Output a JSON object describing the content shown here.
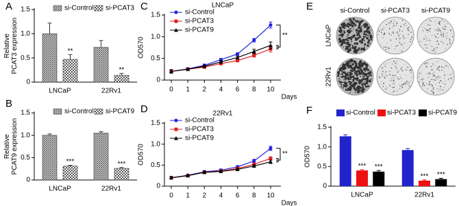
{
  "chart_data": [
    {
      "type": "bar",
      "panel": "A",
      "ylabel": [
        "Relative",
        "PCAT3 expression"
      ],
      "categories": [
        "LNCaP",
        "22Rv1"
      ],
      "series": [
        {
          "name": "si-Control",
          "color": "#666666",
          "pattern": "hatch",
          "values": [
            1.0,
            0.72
          ],
          "errors": [
            0.22,
            0.14
          ],
          "annotations": [
            null,
            null
          ]
        },
        {
          "name": "si-PCAT3",
          "color": "#555555",
          "pattern": "checker",
          "values": [
            0.47,
            0.14
          ],
          "errors": [
            0.1,
            0.04
          ],
          "annotations": [
            "**",
            "**"
          ]
        }
      ],
      "ylim": [
        0,
        1.5
      ],
      "yticks": [
        0,
        0.5,
        {
          "value": 1,
          "label": "1.0"
        },
        1.5
      ],
      "legend": "top"
    },
    {
      "type": "bar",
      "panel": "B",
      "ylabel": [
        "Relative",
        "PCAT9 expression"
      ],
      "categories": [
        "LNCaP",
        "22Rv1"
      ],
      "series": [
        {
          "name": "si-Control",
          "color": "#666666",
          "pattern": "hatch",
          "values": [
            1.0,
            1.05
          ],
          "errors": [
            0.03,
            0.03
          ],
          "annotations": [
            null,
            null
          ]
        },
        {
          "name": "si-PCAT9",
          "color": "#555555",
          "pattern": "checker",
          "values": [
            0.31,
            0.26
          ],
          "errors": [
            0.02,
            0.02
          ],
          "annotations": [
            "***",
            "***"
          ]
        }
      ],
      "ylim": [
        0,
        1.5
      ],
      "yticks": [
        0,
        0.5,
        {
          "value": 1,
          "label": "1.0"
        },
        1.5
      ],
      "legend": "top"
    },
    {
      "type": "line",
      "panel": "C",
      "title": "LNCaP",
      "ylabel": [
        "OD570"
      ],
      "xlabel": "Days",
      "categories": [
        "0",
        "1",
        "2",
        "4",
        "6",
        "8",
        "10"
      ],
      "series": [
        {
          "name": "si-Control",
          "color": "#1f1fe0",
          "marker": "circle",
          "values": [
            0.2,
            0.26,
            0.34,
            0.47,
            0.6,
            0.92,
            1.27
          ],
          "errors": [
            0.04,
            0.02,
            0.03,
            0.03,
            0.03,
            0.04,
            0.07
          ]
        },
        {
          "name": "si-PCAT3",
          "color": "#e01f1f",
          "marker": "square",
          "values": [
            0.2,
            0.25,
            0.3,
            0.38,
            0.45,
            0.57,
            0.72
          ],
          "errors": [
            0.04,
            0.02,
            0.02,
            0.03,
            0.03,
            0.04,
            0.07
          ]
        },
        {
          "name": "si-PCAT9",
          "color": "#000000",
          "marker": "triangle",
          "values": [
            0.2,
            0.25,
            0.32,
            0.42,
            0.52,
            0.66,
            0.8
          ],
          "errors": [
            0.04,
            0.02,
            0.02,
            0.03,
            0.03,
            0.05,
            0.08
          ]
        }
      ],
      "annotation": "**",
      "ylim": [
        0,
        1.5
      ],
      "yticks": [
        0,
        0.5,
        {
          "value": 1,
          "label": "1.0"
        },
        1.5
      ],
      "legend": "upper left"
    },
    {
      "type": "line",
      "panel": "D",
      "title": "22Rv1",
      "ylabel": [
        "OD570"
      ],
      "xlabel": "Days",
      "categories": [
        "0",
        "1",
        "2",
        "4",
        "6",
        "8",
        "10"
      ],
      "series": [
        {
          "name": "si-Control",
          "color": "#1f1fe0",
          "marker": "circle",
          "values": [
            0.2,
            0.26,
            0.34,
            0.38,
            0.46,
            0.6,
            0.9
          ],
          "errors": [
            0.03,
            0.02,
            0.03,
            0.03,
            0.03,
            0.04,
            0.05
          ]
        },
        {
          "name": "si-PCAT3",
          "color": "#e01f1f",
          "marker": "square",
          "values": [
            0.2,
            0.25,
            0.33,
            0.36,
            0.42,
            0.52,
            0.66
          ],
          "errors": [
            0.03,
            0.02,
            0.03,
            0.03,
            0.03,
            0.03,
            0.04
          ]
        },
        {
          "name": "si-PCAT9",
          "color": "#000000",
          "marker": "triangle",
          "values": [
            0.2,
            0.25,
            0.33,
            0.35,
            0.4,
            0.48,
            0.58
          ],
          "errors": [
            0.03,
            0.02,
            0.03,
            0.03,
            0.03,
            0.03,
            0.04
          ]
        }
      ],
      "annotation": "**",
      "ylim": [
        0,
        1.5
      ],
      "yticks": [
        0,
        0.5,
        {
          "value": 1,
          "label": "1.0"
        },
        1.5
      ],
      "legend": "upper left"
    },
    {
      "type": "bar",
      "panel": "F",
      "ylabel": [
        "OD570"
      ],
      "categories": [
        "LNCaP",
        "22Rv1"
      ],
      "series": [
        {
          "name": "si-Control",
          "color": "#2323cc",
          "values": [
            1.27,
            0.92
          ],
          "errors": [
            0.04,
            0.04
          ],
          "annotations": [
            null,
            null
          ]
        },
        {
          "name": "si-PCAT3",
          "color": "#ee1111",
          "values": [
            0.4,
            0.14
          ],
          "errors": [
            0.02,
            0.02
          ],
          "annotations": [
            "***",
            "***"
          ]
        },
        {
          "name": "si-PCAT9",
          "color": "#000000",
          "values": [
            0.37,
            0.18
          ],
          "errors": [
            0.03,
            0.02
          ],
          "annotations": [
            "***",
            "***"
          ]
        }
      ],
      "ylim": [
        0,
        1.5
      ],
      "yticks": [
        0,
        0.5,
        {
          "value": 1,
          "label": "1.0"
        },
        1.5
      ],
      "legend": "above"
    }
  ],
  "panel_e": {
    "panel": "E",
    "columns": [
      "si-Control",
      "si-PCAT3",
      "si-PCAT9"
    ],
    "rows": [
      "LNCaP",
      "22Rv1"
    ]
  }
}
